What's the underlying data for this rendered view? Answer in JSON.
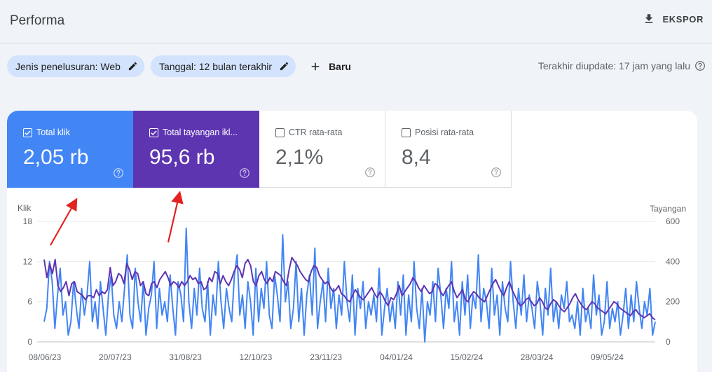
{
  "header": {
    "title": "Performa",
    "export_label": "EKSPOR"
  },
  "filters": {
    "chips": [
      {
        "label": "Jenis penelusuran: Web"
      },
      {
        "label": "Tanggal: 12 bulan terakhir"
      }
    ],
    "new_label": "Baru",
    "updated_text": "Terakhir diupdate: 17 jam yang lalu"
  },
  "metrics": {
    "clicks": {
      "label": "Total klik",
      "value": "2,05 rb",
      "checked": true,
      "color": "#4285f4"
    },
    "impressions": {
      "label": "Total tayangan ikl...",
      "value": "95,6 rb",
      "checked": true,
      "color": "#5e35b1"
    },
    "ctr": {
      "label": "CTR rata-rata",
      "value": "2,1%",
      "checked": false
    },
    "position": {
      "label": "Posisi rata-rata",
      "value": "8,4",
      "checked": false
    }
  },
  "chart_data": {
    "type": "line",
    "left_axis_label": "Klik",
    "right_axis_label": "Tayangan",
    "left_ticks": [
      "18",
      "12",
      "6",
      "0"
    ],
    "right_ticks": [
      "600",
      "400",
      "200",
      "0"
    ],
    "x_tick_labels": [
      "08/06/23",
      "20/07/23",
      "31/08/23",
      "12/10/23",
      "23/11/23",
      "04/01/24",
      "15/02/24",
      "28/03/24",
      "09/05/24"
    ],
    "ylim_left": [
      0,
      18
    ],
    "ylim_right": [
      0,
      600
    ],
    "grid": true,
    "series": [
      {
        "name": "Klik",
        "axis": "left",
        "color": "#4285f4",
        "values": [
          3,
          5,
          12,
          9,
          2,
          7,
          11,
          4,
          6,
          1,
          3,
          9,
          5,
          2,
          8,
          4,
          7,
          12,
          3,
          6,
          2,
          9,
          5,
          1,
          7,
          10,
          4,
          2,
          6,
          3,
          8,
          13,
          4,
          2,
          11,
          6,
          3,
          9,
          1,
          5,
          7,
          12,
          2,
          8,
          4,
          6,
          3,
          10,
          5,
          1,
          9,
          7,
          3,
          17,
          6,
          2,
          8,
          4,
          11,
          5,
          3,
          9,
          1,
          7,
          4,
          12,
          6,
          2,
          8,
          5,
          3,
          10,
          13,
          4,
          7,
          2,
          9,
          6,
          1,
          11,
          3,
          8,
          5,
          12,
          4,
          2,
          10,
          7,
          3,
          16,
          6,
          9,
          2,
          5,
          12,
          3,
          8,
          1,
          7,
          10,
          4,
          14,
          2,
          6,
          9,
          3,
          11,
          5,
          8,
          2,
          7,
          4,
          12,
          6,
          3,
          10,
          1,
          8,
          5,
          9,
          2,
          6,
          4,
          7,
          3,
          11,
          1,
          5,
          8,
          3,
          6,
          2,
          9,
          4,
          10,
          1,
          7,
          3,
          12,
          5,
          2,
          8,
          0,
          6,
          4,
          9,
          3,
          11,
          7,
          2,
          8,
          5,
          12,
          3,
          6,
          1,
          9,
          4,
          10,
          2,
          7,
          5,
          13,
          3,
          8,
          6,
          2,
          11,
          4,
          7,
          1,
          9,
          5,
          3,
          12,
          6,
          2,
          8,
          4,
          10,
          3,
          7,
          5,
          2,
          9,
          6,
          1,
          8,
          4,
          11,
          3,
          6,
          2,
          7,
          5,
          9,
          3,
          4,
          2,
          6,
          1,
          8,
          3,
          5,
          2,
          10,
          4,
          7,
          1,
          3,
          9,
          2,
          5,
          3,
          6,
          1,
          4,
          8,
          2,
          7,
          3,
          9,
          5,
          2,
          6,
          4,
          8,
          1,
          3
        ],
        "note_values_per_day": "daily"
      },
      {
        "name": "Tayangan",
        "axis": "right",
        "color": "#5e35b1",
        "values": [
          410,
          320,
          390,
          340,
          410,
          280,
          250,
          270,
          300,
          230,
          290,
          300,
          250,
          240,
          230,
          210,
          230,
          230,
          220,
          260,
          230,
          250,
          240,
          260,
          370,
          280,
          300,
          340,
          330,
          290,
          390,
          360,
          310,
          350,
          340,
          280,
          300,
          240,
          230,
          290,
          300,
          270,
          310,
          330,
          350,
          320,
          280,
          300,
          290,
          270,
          300,
          280,
          300,
          330,
          310,
          320,
          290,
          300,
          260,
          270,
          320,
          300,
          350,
          340,
          290,
          330,
          300,
          280,
          310,
          350,
          380,
          360,
          320,
          390,
          410,
          380,
          300,
          280,
          330,
          350,
          310,
          290,
          320,
          300,
          350,
          340,
          330,
          300,
          280,
          360,
          420,
          400,
          380,
          350,
          330,
          310,
          300,
          350,
          380,
          370,
          330,
          310,
          290,
          300,
          270,
          250,
          260,
          280,
          240,
          230,
          210,
          200,
          230,
          260,
          240,
          220,
          210,
          230,
          250,
          270,
          240,
          220,
          250,
          230,
          200,
          180,
          220,
          210,
          240,
          280,
          230,
          250,
          270,
          290,
          320,
          300,
          270,
          250,
          280,
          260,
          240,
          250,
          290,
          280,
          250,
          230,
          260,
          280,
          300,
          250,
          220,
          240,
          260,
          210,
          200,
          230,
          250,
          240,
          220,
          210,
          200,
          230,
          260,
          290,
          310,
          280,
          250,
          230,
          270,
          300,
          260,
          230,
          200,
          180,
          190,
          210,
          220,
          200,
          180,
          190,
          220,
          200,
          170,
          160,
          190,
          210,
          200,
          180,
          160,
          150,
          170,
          190,
          220,
          240,
          210,
          190,
          170,
          160,
          180,
          200,
          190,
          170,
          160,
          150,
          140,
          160,
          180,
          200,
          190,
          170,
          160,
          150,
          140,
          130,
          150,
          160,
          140,
          130,
          120,
          130,
          140,
          120,
          110
        ]
      }
    ]
  }
}
